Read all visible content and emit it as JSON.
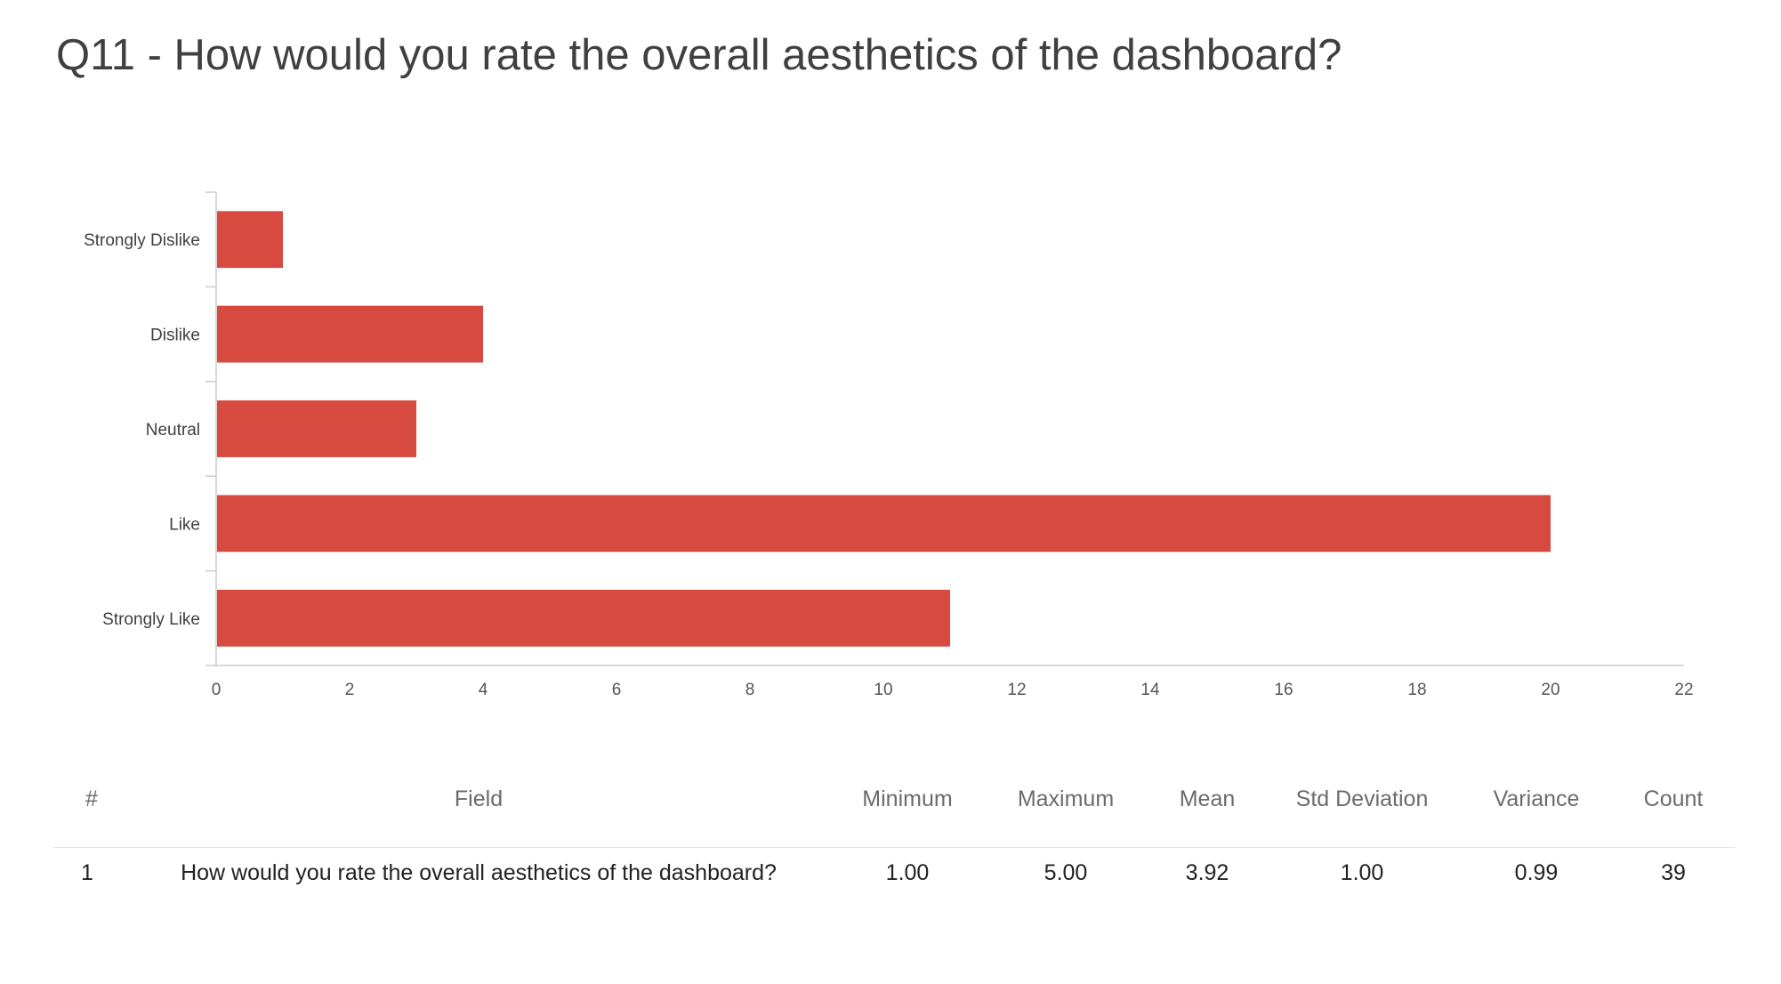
{
  "title": "Q11 - How would you rate the overall aesthetics of the dashboard?",
  "chart_data": {
    "type": "bar",
    "orientation": "horizontal",
    "categories": [
      "Strongly Dislike",
      "Dislike",
      "Neutral",
      "Like",
      "Strongly Like"
    ],
    "values": [
      1,
      4,
      3,
      20,
      11
    ],
    "xlim": [
      0,
      22
    ],
    "xticks": [
      0,
      2,
      4,
      6,
      8,
      10,
      12,
      14,
      16,
      18,
      20,
      22
    ],
    "bar_color": "#d64a3f",
    "axis_color": "#cccccc",
    "grid": false,
    "legend": "none"
  },
  "table": {
    "headers": {
      "num": "#",
      "field": "Field",
      "min": "Minimum",
      "max": "Maximum",
      "mean": "Mean",
      "std": "Std Deviation",
      "variance": "Variance",
      "count": "Count"
    },
    "rows": [
      {
        "num": "1",
        "field": "How would you rate the overall aesthetics of the dashboard?",
        "min": "1.00",
        "max": "5.00",
        "mean": "3.92",
        "std": "1.00",
        "variance": "0.99",
        "count": "39"
      }
    ]
  }
}
